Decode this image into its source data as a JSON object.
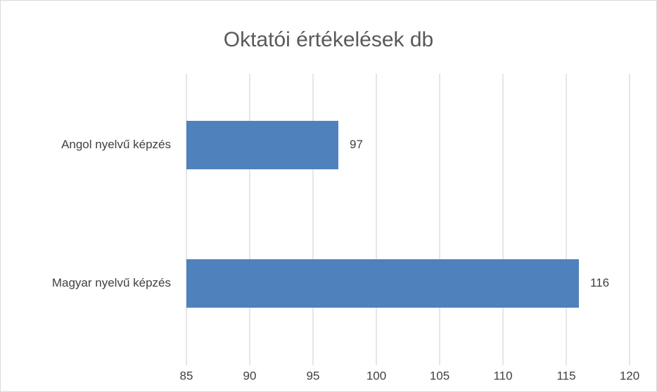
{
  "chart_data": {
    "type": "bar",
    "horizontal": true,
    "title": "Oktatói értékelések db",
    "categories": [
      "Angol nyelvű képzés",
      "Magyar nyelvű képzés"
    ],
    "values": [
      97,
      116
    ],
    "color": "#4f81bd",
    "xlim": [
      85,
      120
    ],
    "xticks": [
      85,
      90,
      95,
      100,
      105,
      110,
      115,
      120
    ],
    "grid": true
  }
}
